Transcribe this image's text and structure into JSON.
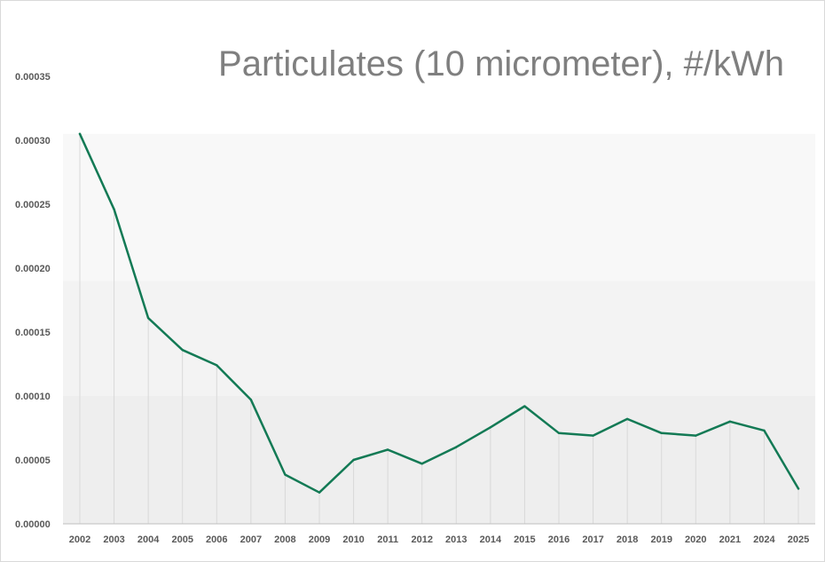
{
  "chart_data": {
    "type": "line",
    "title": "Particulates (10 micrometer), #/kWh",
    "xlabel": "",
    "ylabel": "",
    "categories": [
      "2002",
      "2003",
      "2004",
      "2005",
      "2006",
      "2007",
      "2008",
      "2009",
      "2010",
      "2011",
      "2012",
      "2013",
      "2014",
      "2015",
      "2016",
      "2017",
      "2018",
      "2019",
      "2020",
      "2021",
      "2024",
      "2025"
    ],
    "series": [
      {
        "values": [
          0.000305,
          0.000246,
          0.000161,
          0.000136,
          0.000124,
          9.7e-05,
          3.85e-05,
          2.45e-05,
          5e-05,
          5.8e-05,
          4.7e-05,
          6e-05,
          7.55e-05,
          9.2e-05,
          7.1e-05,
          6.9e-05,
          8.2e-05,
          7.1e-05,
          6.9e-05,
          8e-05,
          7.3e-05,
          2.75e-05
        ],
        "color": "#137a55"
      }
    ],
    "ylim": [
      0,
      0.00035
    ],
    "yticks": [
      "0.00000",
      "0.00005",
      "0.00010",
      "0.00015",
      "0.00020",
      "0.00025",
      "0.00030",
      "0.00035"
    ],
    "grid": false,
    "legend": "none",
    "colors": {
      "line": "#137a55",
      "band_light": "#f8f8f8",
      "band_mid": "#f3f3f3",
      "band_dark": "#eeeeee",
      "dropline": "#d9d9d9",
      "axis": "#bfbfbf",
      "title": "#7f7f7f",
      "tick": "#595959"
    }
  }
}
